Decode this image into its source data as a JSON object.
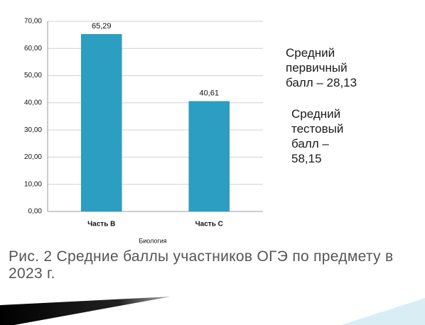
{
  "chart_data": {
    "type": "bar",
    "categories": [
      "Часть В",
      "Часть С"
    ],
    "values": [
      65.29,
      40.61
    ],
    "value_labels": [
      "65,29",
      "40,61"
    ],
    "color": "#2b9ec1",
    "x_label": "Биология",
    "ylim": [
      0,
      70
    ],
    "yticks": [
      {
        "value": 0,
        "label": "0,00"
      },
      {
        "value": 10,
        "label": "10,00"
      },
      {
        "value": 20,
        "label": "20,00"
      },
      {
        "value": 30,
        "label": "30,00"
      },
      {
        "value": 40,
        "label": "40,00"
      },
      {
        "value": 50,
        "label": "50,00"
      },
      {
        "value": 60,
        "label": "60,00"
      },
      {
        "value": 70,
        "label": "70,00"
      }
    ],
    "grid": true,
    "annotations": [
      "Средний первичный балл – 28,13",
      "Средний тестовый балл – 58,15"
    ],
    "caption": "Рис. 2 Средние баллы участников ОГЭ по предмету в 2023 г."
  }
}
